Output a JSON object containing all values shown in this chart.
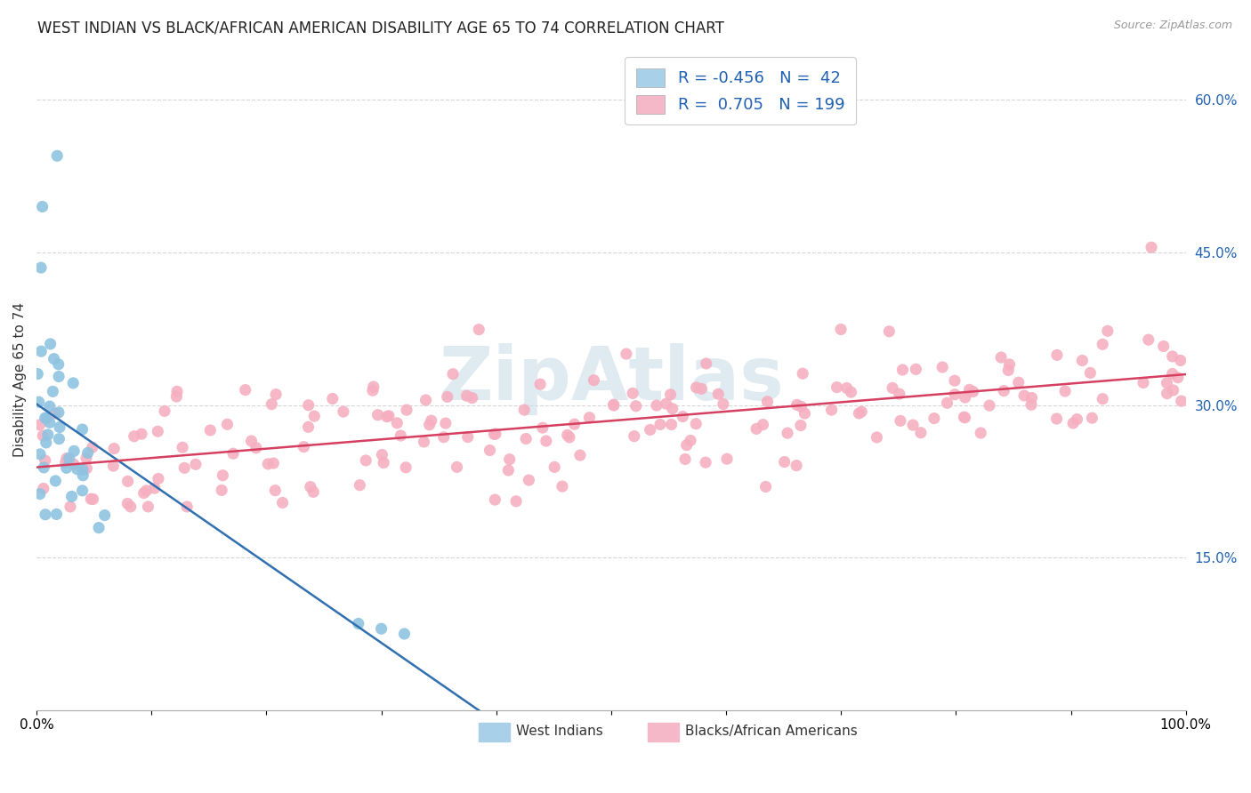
{
  "title": "WEST INDIAN VS BLACK/AFRICAN AMERICAN DISABILITY AGE 65 TO 74 CORRELATION CHART",
  "source": "Source: ZipAtlas.com",
  "ylabel": "Disability Age 65 to 74",
  "ytick_values": [
    0.15,
    0.3,
    0.45,
    0.6
  ],
  "ytick_labels": [
    "15.0%",
    "30.0%",
    "45.0%",
    "60.0%"
  ],
  "xlim": [
    0.0,
    1.0
  ],
  "ylim": [
    0.0,
    0.65
  ],
  "bottom_legend_labels": [
    "West Indians",
    "Blacks/African Americans"
  ],
  "r_west_indian": -0.456,
  "n_west_indian": 42,
  "r_black": 0.705,
  "n_black": 199,
  "blue_scatter_color": "#8fc3e0",
  "pink_scatter_color": "#f5afc0",
  "blue_line_color": "#3070b0",
  "pink_line_color": "#d64060",
  "blue_legend_color": "#a8d0e8",
  "pink_legend_color": "#f5b8c8",
  "background_color": "#ffffff",
  "watermark_text": "ZipAtlas",
  "watermark_color": "#ccdde8",
  "title_fontsize": 12,
  "legend_fontsize": 13,
  "tick_fontsize": 11,
  "ylabel_fontsize": 11
}
